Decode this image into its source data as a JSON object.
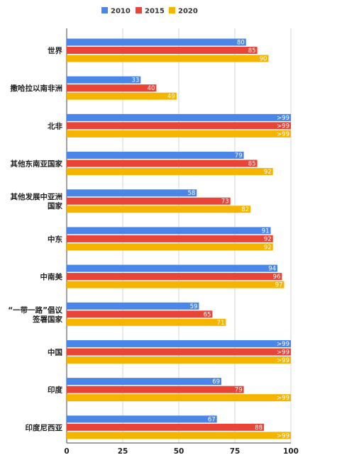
{
  "chart_data": {
    "type": "bar",
    "orientation": "horizontal",
    "categories": [
      "世界",
      "撒哈拉以南非洲",
      "北非",
      "其他东南亚国家",
      "其他发展中亚洲 国家",
      "中东",
      "中南美",
      "“一带一路”倡议 签署国家",
      "中国",
      "印度",
      "印度尼西亚"
    ],
    "series": [
      {
        "name": "2010",
        "color": "#4a86e8",
        "values": [
          80,
          33,
          100,
          79,
          58,
          91,
          94,
          59,
          100,
          69,
          67
        ],
        "labels": [
          "80",
          "33",
          ">99",
          "79",
          "58",
          "91",
          "94",
          "59",
          ">99",
          "69",
          "67"
        ]
      },
      {
        "name": "2015",
        "color": "#e84437",
        "values": [
          85,
          40,
          100,
          85,
          73,
          92,
          96,
          65,
          100,
          79,
          88
        ],
        "labels": [
          "85",
          "40",
          ">99",
          "85",
          "73",
          "92",
          "96",
          "65",
          ">99",
          "79",
          "88"
        ]
      },
      {
        "name": "2020",
        "color": "#f4b400",
        "values": [
          90,
          49,
          100,
          92,
          82,
          92,
          97,
          71,
          100,
          100,
          100
        ],
        "labels": [
          "90",
          "49",
          ">99",
          "92",
          "82",
          "92",
          "97",
          "71",
          ">99",
          ">99",
          ">99"
        ]
      }
    ],
    "xlim": [
      0,
      100
    ],
    "xticks": [
      "0",
      "25",
      "50",
      "75",
      "100"
    ],
    "grid": true,
    "legend": "top-center"
  }
}
